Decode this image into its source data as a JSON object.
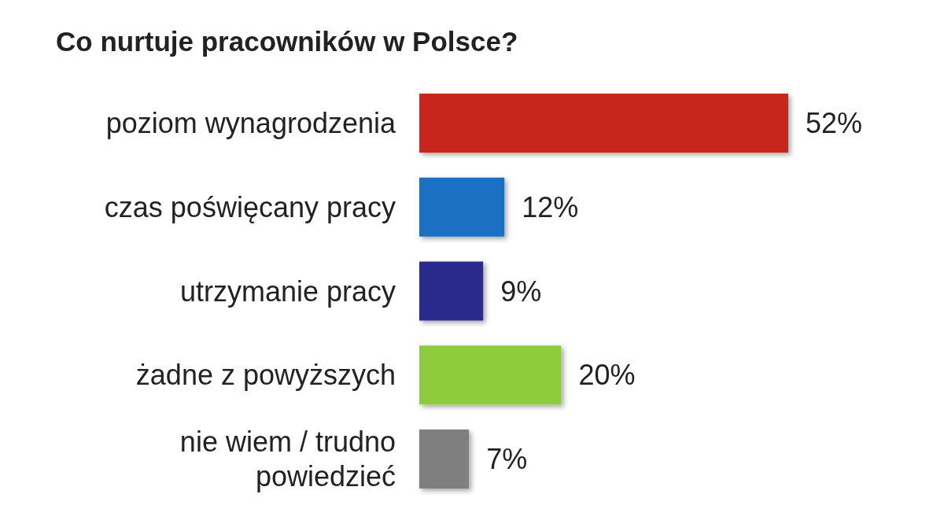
{
  "chart_data": {
    "type": "bar",
    "orientation": "horizontal",
    "title": "Co nurtuje pracowników w Polsce?",
    "categories": [
      "poziom wynagrodzenia",
      "czas poświęcany pracy",
      "utrzymanie pracy",
      "żadne z powyższych",
      "nie wiem / trudno powiedzieć"
    ],
    "values": [
      52,
      12,
      9,
      20,
      7
    ],
    "colors": [
      "#c8281e",
      "#1a6fc4",
      "#2b2a8c",
      "#8ccc3c",
      "#7f7f7f"
    ],
    "value_labels": [
      "52%",
      "12%",
      "9%",
      "20%",
      "7%"
    ]
  }
}
